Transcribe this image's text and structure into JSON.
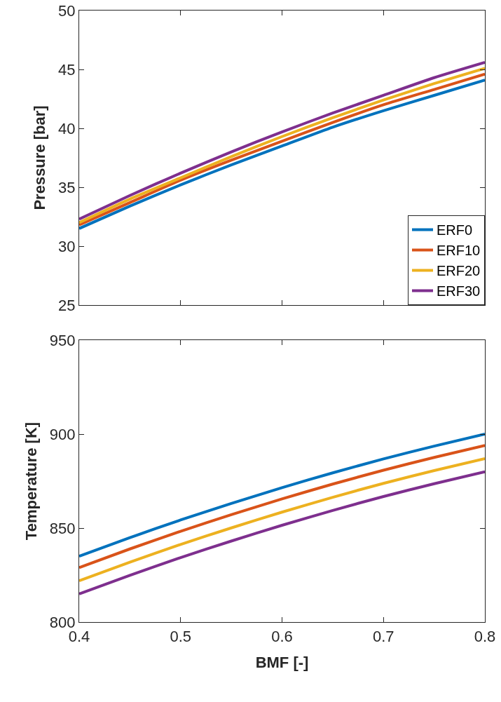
{
  "chart_data": [
    {
      "type": "line",
      "ylabel": "Pressure [bar]",
      "x": [
        0.4,
        0.45,
        0.5,
        0.55,
        0.6,
        0.65,
        0.7,
        0.75,
        0.8
      ],
      "xlim": [
        0.4,
        0.8
      ],
      "xticks": [
        0.4,
        0.5,
        0.6,
        0.7,
        0.8
      ],
      "ylim": [
        25,
        50
      ],
      "yticks": [
        25,
        30,
        35,
        40,
        45,
        50
      ],
      "tick_labels": "y",
      "grid": false,
      "legend": "bottom right",
      "marker": "none",
      "line_style": "solid",
      "series": [
        {
          "name": "ERF0",
          "color": "#0072bd",
          "values": [
            31.5,
            33.4,
            35.2,
            36.9,
            38.5,
            40.1,
            41.5,
            42.8,
            44.1
          ]
        },
        {
          "name": "ERF10",
          "color": "#d95319",
          "values": [
            31.8,
            33.7,
            35.6,
            37.3,
            38.9,
            40.5,
            42.0,
            43.3,
            44.6
          ]
        },
        {
          "name": "ERF20",
          "color": "#edb120",
          "values": [
            32.0,
            34.0,
            35.8,
            37.6,
            39.3,
            40.9,
            42.4,
            43.8,
            45.1
          ]
        },
        {
          "name": "ERF30",
          "color": "#7e2f8e",
          "values": [
            32.3,
            34.3,
            36.2,
            38.0,
            39.7,
            41.3,
            42.8,
            44.3,
            45.6
          ]
        }
      ]
    },
    {
      "type": "line",
      "xlabel": "BMF [-]",
      "ylabel": "Temperature [K]",
      "x": [
        0.4,
        0.45,
        0.5,
        0.55,
        0.6,
        0.65,
        0.7,
        0.75,
        0.8
      ],
      "xlim": [
        0.4,
        0.8
      ],
      "xticks": [
        0.4,
        0.5,
        0.6,
        0.7,
        0.8
      ],
      "ylim": [
        800,
        950
      ],
      "yticks": [
        800,
        850,
        900,
        950
      ],
      "grid": false,
      "legend": false,
      "marker": "none",
      "line_style": "solid",
      "series": [
        {
          "color": "#0072bd",
          "values": [
            835.0,
            844.9,
            854.3,
            863.1,
            871.5,
            879.4,
            886.8,
            893.6,
            900.0
          ]
        },
        {
          "color": "#d95319",
          "values": [
            829.0,
            838.9,
            848.3,
            857.1,
            865.5,
            873.4,
            880.8,
            887.6,
            894.0
          ]
        },
        {
          "color": "#edb120",
          "values": [
            822.0,
            831.9,
            841.3,
            850.1,
            858.5,
            866.4,
            873.8,
            880.6,
            887.0
          ]
        },
        {
          "color": "#7e2f8e",
          "values": [
            815.0,
            824.9,
            834.3,
            843.1,
            851.5,
            859.4,
            866.8,
            873.6,
            880.0
          ]
        }
      ]
    }
  ]
}
